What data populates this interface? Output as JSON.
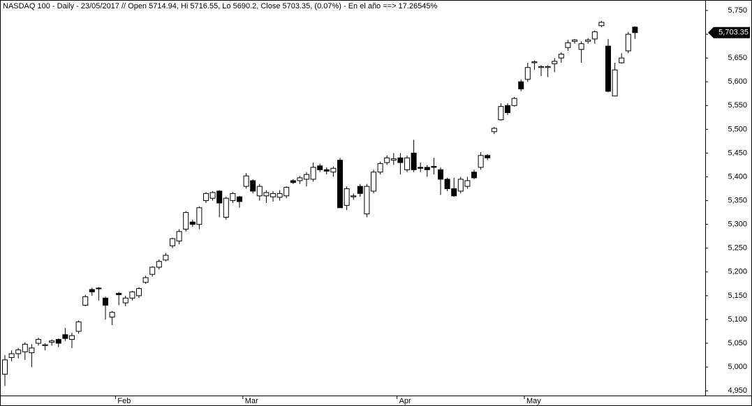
{
  "chart_data": {
    "type": "candlestick",
    "title": "NASDAQ 100 - Daily - 23/05/2017 // Open 5714.94, Hi 5716.55, Lo 5690.2, Close 5703.35, (0.07%) - En el año ==> 17.26545%",
    "categories": [
      null,
      null,
      null,
      null,
      null,
      null,
      null,
      null,
      null,
      null,
      null,
      null,
      null,
      null,
      null,
      null,
      null,
      "Feb",
      null,
      null,
      null,
      null,
      null,
      null,
      null,
      null,
      null,
      null,
      null,
      null,
      null,
      null,
      null,
      null,
      null,
      null,
      "Mar",
      null,
      null,
      null,
      null,
      null,
      null,
      null,
      null,
      null,
      null,
      null,
      null,
      null,
      null,
      null,
      null,
      null,
      null,
      null,
      null,
      null,
      null,
      "Apr",
      null,
      null,
      null,
      null,
      null,
      null,
      null,
      null,
      null,
      null,
      null,
      null,
      null,
      null,
      null,
      null,
      null,
      null,
      "May",
      null,
      null,
      null,
      null,
      null,
      null,
      null,
      null,
      null,
      null,
      null,
      null,
      null,
      null,
      null,
      null
    ],
    "open": [
      4985,
      5020,
      5028,
      5032,
      5030,
      5050,
      5045,
      5052,
      5058,
      5068,
      5058,
      5075,
      5130,
      5163,
      5165,
      5145,
      5105,
      5155,
      5135,
      5145,
      5150,
      5178,
      5195,
      5210,
      5225,
      5255,
      5265,
      5290,
      5305,
      5300,
      5350,
      5355,
      5370,
      5315,
      5350,
      5358,
      5380,
      5392,
      5360,
      5360,
      5358,
      5357,
      5360,
      5392,
      5392,
      5395,
      5395,
      5423,
      5415,
      5410,
      5435,
      5340,
      5358,
      5380,
      5322,
      5370,
      5410,
      5430,
      5435,
      5440,
      5415,
      5450,
      5420,
      5420,
      5422,
      5415,
      5395,
      5375,
      5370,
      5380,
      5410,
      5420,
      5445,
      5495,
      5520,
      5550,
      5550,
      5600,
      5605,
      5640,
      5630,
      5630,
      5638,
      5650,
      5672,
      5685,
      5668,
      5685,
      5690,
      5718,
      5675,
      5570,
      5640,
      5665,
      5714.94
    ],
    "high": [
      5025,
      5035,
      5040,
      5052,
      5048,
      5062,
      5050,
      5058,
      5060,
      5082,
      5072,
      5098,
      5152,
      5167,
      5168,
      5148,
      5118,
      5158,
      5150,
      5160,
      5168,
      5192,
      5212,
      5226,
      5240,
      5272,
      5290,
      5328,
      5310,
      5338,
      5368,
      5370,
      5372,
      5358,
      5368,
      5360,
      5408,
      5395,
      5385,
      5372,
      5370,
      5372,
      5380,
      5395,
      5402,
      5410,
      5430,
      5428,
      5420,
      5422,
      5440,
      5380,
      5365,
      5385,
      5385,
      5415,
      5432,
      5445,
      5450,
      5450,
      5445,
      5478,
      5430,
      5425,
      5440,
      5420,
      5398,
      5398,
      5400,
      5400,
      5415,
      5452,
      5448,
      5505,
      5555,
      5555,
      5568,
      5605,
      5640,
      5645,
      5635,
      5635,
      5650,
      5662,
      5688,
      5690,
      5685,
      5692,
      5708,
      5728,
      5690,
      5640,
      5660,
      5705,
      5716.55
    ],
    "low": [
      4960,
      5012,
      5018,
      5015,
      5000,
      5045,
      5035,
      5045,
      5042,
      5055,
      5040,
      5070,
      5128,
      5150,
      5140,
      5100,
      5088,
      5130,
      5128,
      5140,
      5145,
      5175,
      5190,
      5205,
      5222,
      5250,
      5258,
      5285,
      5295,
      5290,
      5345,
      5350,
      5315,
      5310,
      5345,
      5335,
      5375,
      5365,
      5350,
      5345,
      5348,
      5350,
      5355,
      5385,
      5385,
      5380,
      5390,
      5410,
      5405,
      5400,
      5335,
      5330,
      5352,
      5358,
      5315,
      5365,
      5405,
      5425,
      5425,
      5405,
      5410,
      5410,
      5410,
      5400,
      5405,
      5362,
      5370,
      5358,
      5365,
      5375,
      5395,
      5415,
      5435,
      5490,
      5518,
      5530,
      5548,
      5580,
      5600,
      5625,
      5612,
      5610,
      5620,
      5640,
      5665,
      5680,
      5640,
      5680,
      5680,
      5715,
      5578,
      5570,
      5638,
      5660,
      5690.2
    ],
    "close": [
      5015,
      5028,
      5036,
      5048,
      5040,
      5058,
      5047,
      5055,
      5050,
      5060,
      5066,
      5095,
      5148,
      5158,
      5166,
      5130,
      5115,
      5152,
      5145,
      5158,
      5165,
      5188,
      5210,
      5222,
      5235,
      5270,
      5285,
      5325,
      5300,
      5335,
      5365,
      5367,
      5345,
      5355,
      5365,
      5348,
      5402,
      5370,
      5380,
      5367,
      5365,
      5365,
      5378,
      5388,
      5398,
      5405,
      5420,
      5415,
      5412,
      5418,
      5335,
      5375,
      5360,
      5365,
      5380,
      5410,
      5428,
      5440,
      5438,
      5430,
      5440,
      5415,
      5418,
      5415,
      5420,
      5395,
      5375,
      5360,
      5395,
      5392,
      5398,
      5445,
      5440,
      5502,
      5548,
      5535,
      5565,
      5585,
      5630,
      5642,
      5632,
      5632,
      5643,
      5658,
      5682,
      5688,
      5680,
      5688,
      5705,
      5725,
      5580,
      5625,
      5650,
      5700,
      5703.35
    ],
    "last_close_label": "5,703.35",
    "ylim": [
      4940,
      5772
    ],
    "yticks": [
      {
        "value": 4950,
        "label": "4,950"
      },
      {
        "value": 5000,
        "label": "5,000"
      },
      {
        "value": 5050,
        "label": "5,050"
      },
      {
        "value": 5100,
        "label": "5,100"
      },
      {
        "value": 5150,
        "label": "5,150"
      },
      {
        "value": 5200,
        "label": "5,200"
      },
      {
        "value": 5250,
        "label": "5,250"
      },
      {
        "value": 5300,
        "label": "5,300"
      },
      {
        "value": 5350,
        "label": "5,350"
      },
      {
        "value": 5400,
        "label": "5,400"
      },
      {
        "value": 5450,
        "label": "5,450"
      },
      {
        "value": 5500,
        "label": "5,500"
      },
      {
        "value": 5550,
        "label": "5,550"
      },
      {
        "value": 5600,
        "label": "5,600"
      },
      {
        "value": 5650,
        "label": "5,650"
      },
      {
        "value": 5700,
        "label": "5,700"
      },
      {
        "value": 5750,
        "label": "5,750"
      }
    ],
    "up_color": "#ffffff",
    "down_color": "#000000"
  }
}
